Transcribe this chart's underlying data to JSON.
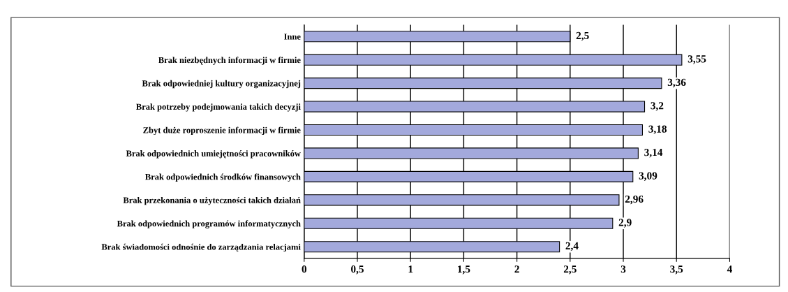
{
  "chart_data": {
    "type": "bar",
    "orientation": "horizontal",
    "categories": [
      "Inne",
      "Brak niezbędnych informacji w firmie",
      "Brak odpowiedniej kultury organizacyjnej",
      "Brak potrzeby podejmowania takich decyzji",
      "Zbyt duże roproszenie informacji w firmie",
      "Brak odpowiednich umiejętności pracowników",
      "Brak odpowiednich środków finansowych",
      "Brak przekonania o użyteczności takich działań",
      "Brak odpowiednich programów informatycznych",
      "Brak świadomości odnośnie do zarządzania relacjami"
    ],
    "values": [
      2.5,
      3.55,
      3.36,
      3.2,
      3.18,
      3.14,
      3.09,
      2.96,
      2.9,
      2.4
    ],
    "value_labels": [
      "2,5",
      "3,55",
      "3,36",
      "3,2",
      "3,18",
      "3,14",
      "3,09",
      "2,96",
      "2,9",
      "2,4"
    ],
    "color": "#a3a9dc",
    "xlim": [
      0,
      4
    ],
    "xticks": [
      0,
      {
        "value": 0.5,
        "label": "0,5"
      },
      1,
      {
        "value": 1.5,
        "label": "1,5"
      },
      2,
      {
        "value": 2.5,
        "label": "2,5"
      },
      3,
      {
        "value": 3.5,
        "label": "3,5"
      },
      4
    ],
    "grid": "x"
  }
}
